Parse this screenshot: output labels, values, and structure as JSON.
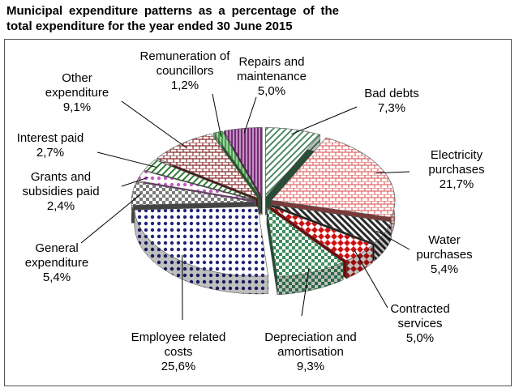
{
  "chart_data": {
    "type": "pie",
    "title": "Municipal expenditure patterns as a percentage of the total expenditure for the year ended 30 June 2015",
    "categories": [
      "Bad debts",
      "Electricity purchases",
      "Water purchases",
      "Contracted services",
      "Depreciation and amortisation",
      "Employee related costs",
      "General expenditure",
      "Grants and subsidies paid",
      "Interest paid",
      "Other expenditure",
      "Remuneration of councillors",
      "Repairs and maintenance"
    ],
    "values": [
      7.3,
      21.7,
      5.4,
      5.0,
      9.3,
      25.6,
      5.4,
      2.4,
      2.7,
      9.1,
      1.2,
      5.0
    ],
    "value_labels": [
      "7,3%",
      "21,7%",
      "5,4%",
      "5,0%",
      "9,3%",
      "25,6%",
      "5,4%",
      "2,4%",
      "2,7%",
      "9,1%",
      "1,2%",
      "5,0%"
    ],
    "colors": [
      "#4f8a63",
      "#e06a6a",
      "#2b2b2b",
      "#d01010",
      "#3d8c5c",
      "#23237a",
      "#7a7a7a",
      "#c85ac8",
      "#2e7d32",
      "#8a2a2a",
      "#43a047",
      "#7b2a7b"
    ]
  }
}
